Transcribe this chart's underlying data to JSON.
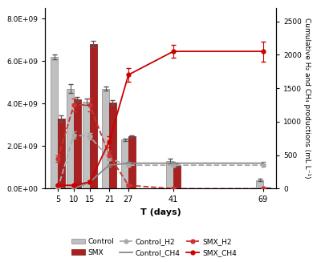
{
  "days": [
    5,
    10,
    15,
    21,
    27,
    41,
    69
  ],
  "control_bars": [
    6200000000.0,
    4700000000.0,
    4100000000.0,
    4700000000.0,
    2300000000.0,
    1300000000.0,
    400000000.0
  ],
  "control_bars_err": [
    100000000.0,
    200000000.0,
    150000000.0,
    100000000.0,
    50000000.0,
    100000000.0,
    50000000.0
  ],
  "smx_bars": [
    3300000000.0,
    4200000000.0,
    6800000000.0,
    4050000000.0,
    2450000000.0,
    1100000000.0,
    50000000.0
  ],
  "smx_bars_err": [
    150000000.0,
    100000000.0,
    150000000.0,
    100000000.0,
    50000000.0,
    100000000.0,
    20000000.0
  ],
  "control_h2_vals": [
    0,
    800,
    780,
    450,
    350,
    350,
    350
  ],
  "control_h2_err": [
    0,
    50,
    50,
    30,
    20,
    20,
    20
  ],
  "control_ch4_vals": [
    0,
    0,
    100,
    350,
    380,
    380,
    380
  ],
  "control_ch4_err": [
    0,
    0,
    20,
    20,
    20,
    20,
    20
  ],
  "smx_h2_vals": [
    450,
    1250,
    1250,
    500,
    50,
    0,
    0
  ],
  "smx_h2_err": [
    50,
    100,
    100,
    60,
    20,
    0,
    0
  ],
  "smx_ch4_vals": [
    50,
    50,
    100,
    700,
    1700,
    2050,
    2050
  ],
  "smx_ch4_err": [
    10,
    10,
    20,
    80,
    100,
    100,
    150
  ],
  "bar_width": 2.2,
  "ylim_left": [
    0,
    8500000000.0
  ],
  "ylim_right": [
    0,
    2700
  ],
  "yticks_left": [
    0,
    2000000000.0,
    4000000000.0,
    6000000000.0,
    8000000000.0
  ],
  "yticks_left_labels": [
    "0.0E+00",
    "2.0E+09",
    "4.0E+09",
    "6.0E+09",
    "8.0E+09"
  ],
  "yticks_right": [
    0,
    500,
    1000,
    1500,
    2000,
    2500
  ],
  "control_bar_color": "#c0c0c0",
  "smx_bar_color": "#aa2020",
  "control_h2_color": "#aaaaaa",
  "control_ch4_color": "#888888",
  "smx_h2_color": "#cc3333",
  "smx_ch4_color": "#cc0000",
  "xlabel": "T (days)",
  "ylabel_right": "Cumulative H₂ and CH₄ productions (mL L⁻¹)"
}
